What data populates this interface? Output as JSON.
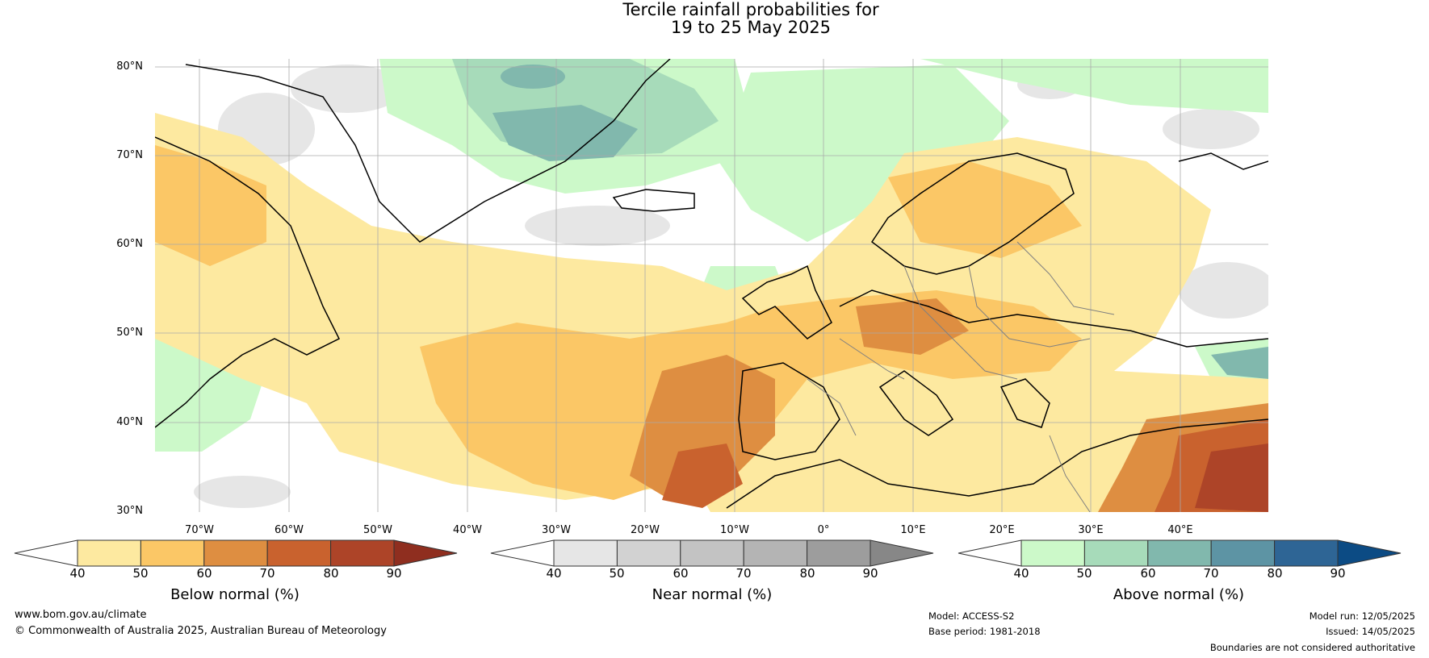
{
  "title": {
    "line1": "Tercile rainfall probabilities for",
    "line2": "19 to 25 May 2025"
  },
  "map": {
    "lat_labels": [
      "80°N",
      "70°N",
      "60°N",
      "50°N",
      "40°N",
      "30°N"
    ],
    "lon_labels": [
      "70°W",
      "60°W",
      "50°W",
      "40°W",
      "30°W",
      "20°W",
      "10°W",
      "0°",
      "10°E",
      "20°E",
      "30°E",
      "40°E"
    ],
    "extent": {
      "lon_min": -75,
      "lon_max": 50,
      "lat_min": 30,
      "lat_max": 81
    },
    "colors": {
      "below": [
        "#fde9a0",
        "#fbc766",
        "#de8e41",
        "#c9622e",
        "#ad4428",
        "#8f2e1f"
      ],
      "near": [
        "#e6e6e6",
        "#d2d2d2",
        "#c3c3c3",
        "#b4b4b4",
        "#9d9d9d",
        "#878787"
      ],
      "above": [
        "#ccf9c9",
        "#a7dbba",
        "#81b8ad",
        "#5d94a4",
        "#2e6595",
        "#0c4b84"
      ]
    }
  },
  "colorbars": [
    {
      "label": "Below normal (%)",
      "ticks": [
        "40",
        "50",
        "60",
        "70",
        "80",
        "90"
      ]
    },
    {
      "label": "Near normal (%)",
      "ticks": [
        "40",
        "50",
        "60",
        "70",
        "80",
        "90"
      ]
    },
    {
      "label": "Above normal (%)",
      "ticks": [
        "40",
        "50",
        "60",
        "70",
        "80",
        "90"
      ]
    }
  ],
  "footer": {
    "website": "www.bom.gov.au/climate",
    "copyright": "© Commonwealth of Australia 2025, Australian Bureau of Meteorology",
    "model": "Model: ACCESS-S2",
    "base_period": "Base period: 1981-2018",
    "model_run": "Model run: 12/05/2025",
    "issued": "Issued: 14/05/2025",
    "disclaimer": "Boundaries are not considered authoritative"
  }
}
